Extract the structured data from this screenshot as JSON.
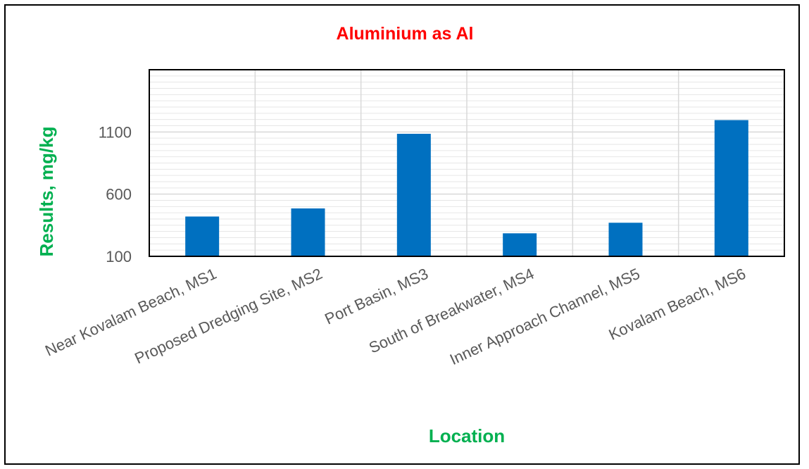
{
  "chart_data": {
    "type": "bar",
    "title": "Aluminium as Al",
    "xlabel": "Location",
    "ylabel": "Results, mg/kg",
    "categories": [
      "Near Kovalam Beach, MS1",
      "Proposed Dredging Site, MS2",
      "Port Basin, MS3",
      "South of Breakwater, MS4",
      "Inner Approach Channel, MS5",
      "Kovalam Beach, MS6"
    ],
    "values": [
      420,
      485,
      1085,
      285,
      370,
      1195
    ],
    "y_ticks": [
      100,
      600,
      1100
    ],
    "ylim": [
      100,
      1600
    ],
    "grid": true,
    "colors": {
      "bar": "#0070C0",
      "title": "#FF0000",
      "axis_title": "#00B050",
      "tick": "#595959",
      "grid": "#D9D9D9",
      "plot_border": "#000000"
    }
  }
}
